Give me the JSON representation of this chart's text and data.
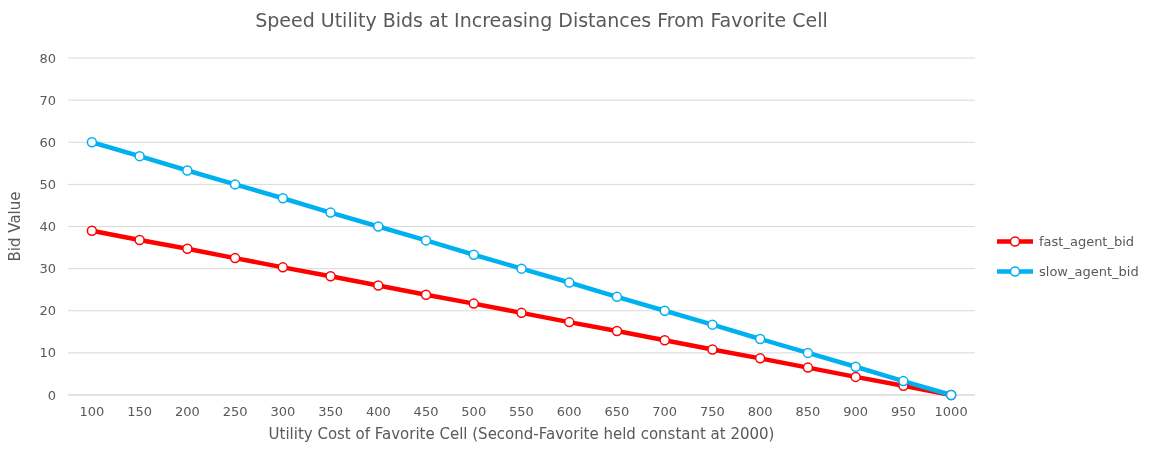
{
  "chart_data": {
    "type": "line",
    "title": "Speed Utility Bids at Increasing Distances From Favorite Cell",
    "xlabel": "Utility Cost of Favorite Cell (Second-Favorite held constant at 2000)",
    "ylabel": "Bid Value",
    "categories": [
      "100",
      "150",
      "200",
      "250",
      "300",
      "350",
      "400",
      "450",
      "500",
      "550",
      "600",
      "650",
      "700",
      "750",
      "800",
      "850",
      "900",
      "950",
      "1000"
    ],
    "series": [
      {
        "name": "fast_agent_bid",
        "color": "#ff0000",
        "values": [
          39,
          36.8,
          34.7,
          32.5,
          30.3,
          28.2,
          26,
          23.8,
          21.7,
          19.5,
          17.3,
          15.2,
          13,
          10.8,
          8.7,
          6.5,
          4.3,
          2.2,
          0
        ]
      },
      {
        "name": "slow_agent_bid",
        "color": "#00b0f0",
        "values": [
          60,
          56.7,
          53.3,
          50,
          46.7,
          43.3,
          40,
          36.7,
          33.3,
          30,
          26.7,
          23.3,
          20,
          16.7,
          13.3,
          10,
          6.7,
          3.3,
          0
        ]
      }
    ],
    "ylim": [
      0,
      80
    ],
    "yticks": [
      0,
      10,
      20,
      30,
      40,
      50,
      60,
      70,
      80
    ],
    "grid": "y",
    "legend": "right",
    "marker": "circle",
    "line_style": "solid"
  }
}
